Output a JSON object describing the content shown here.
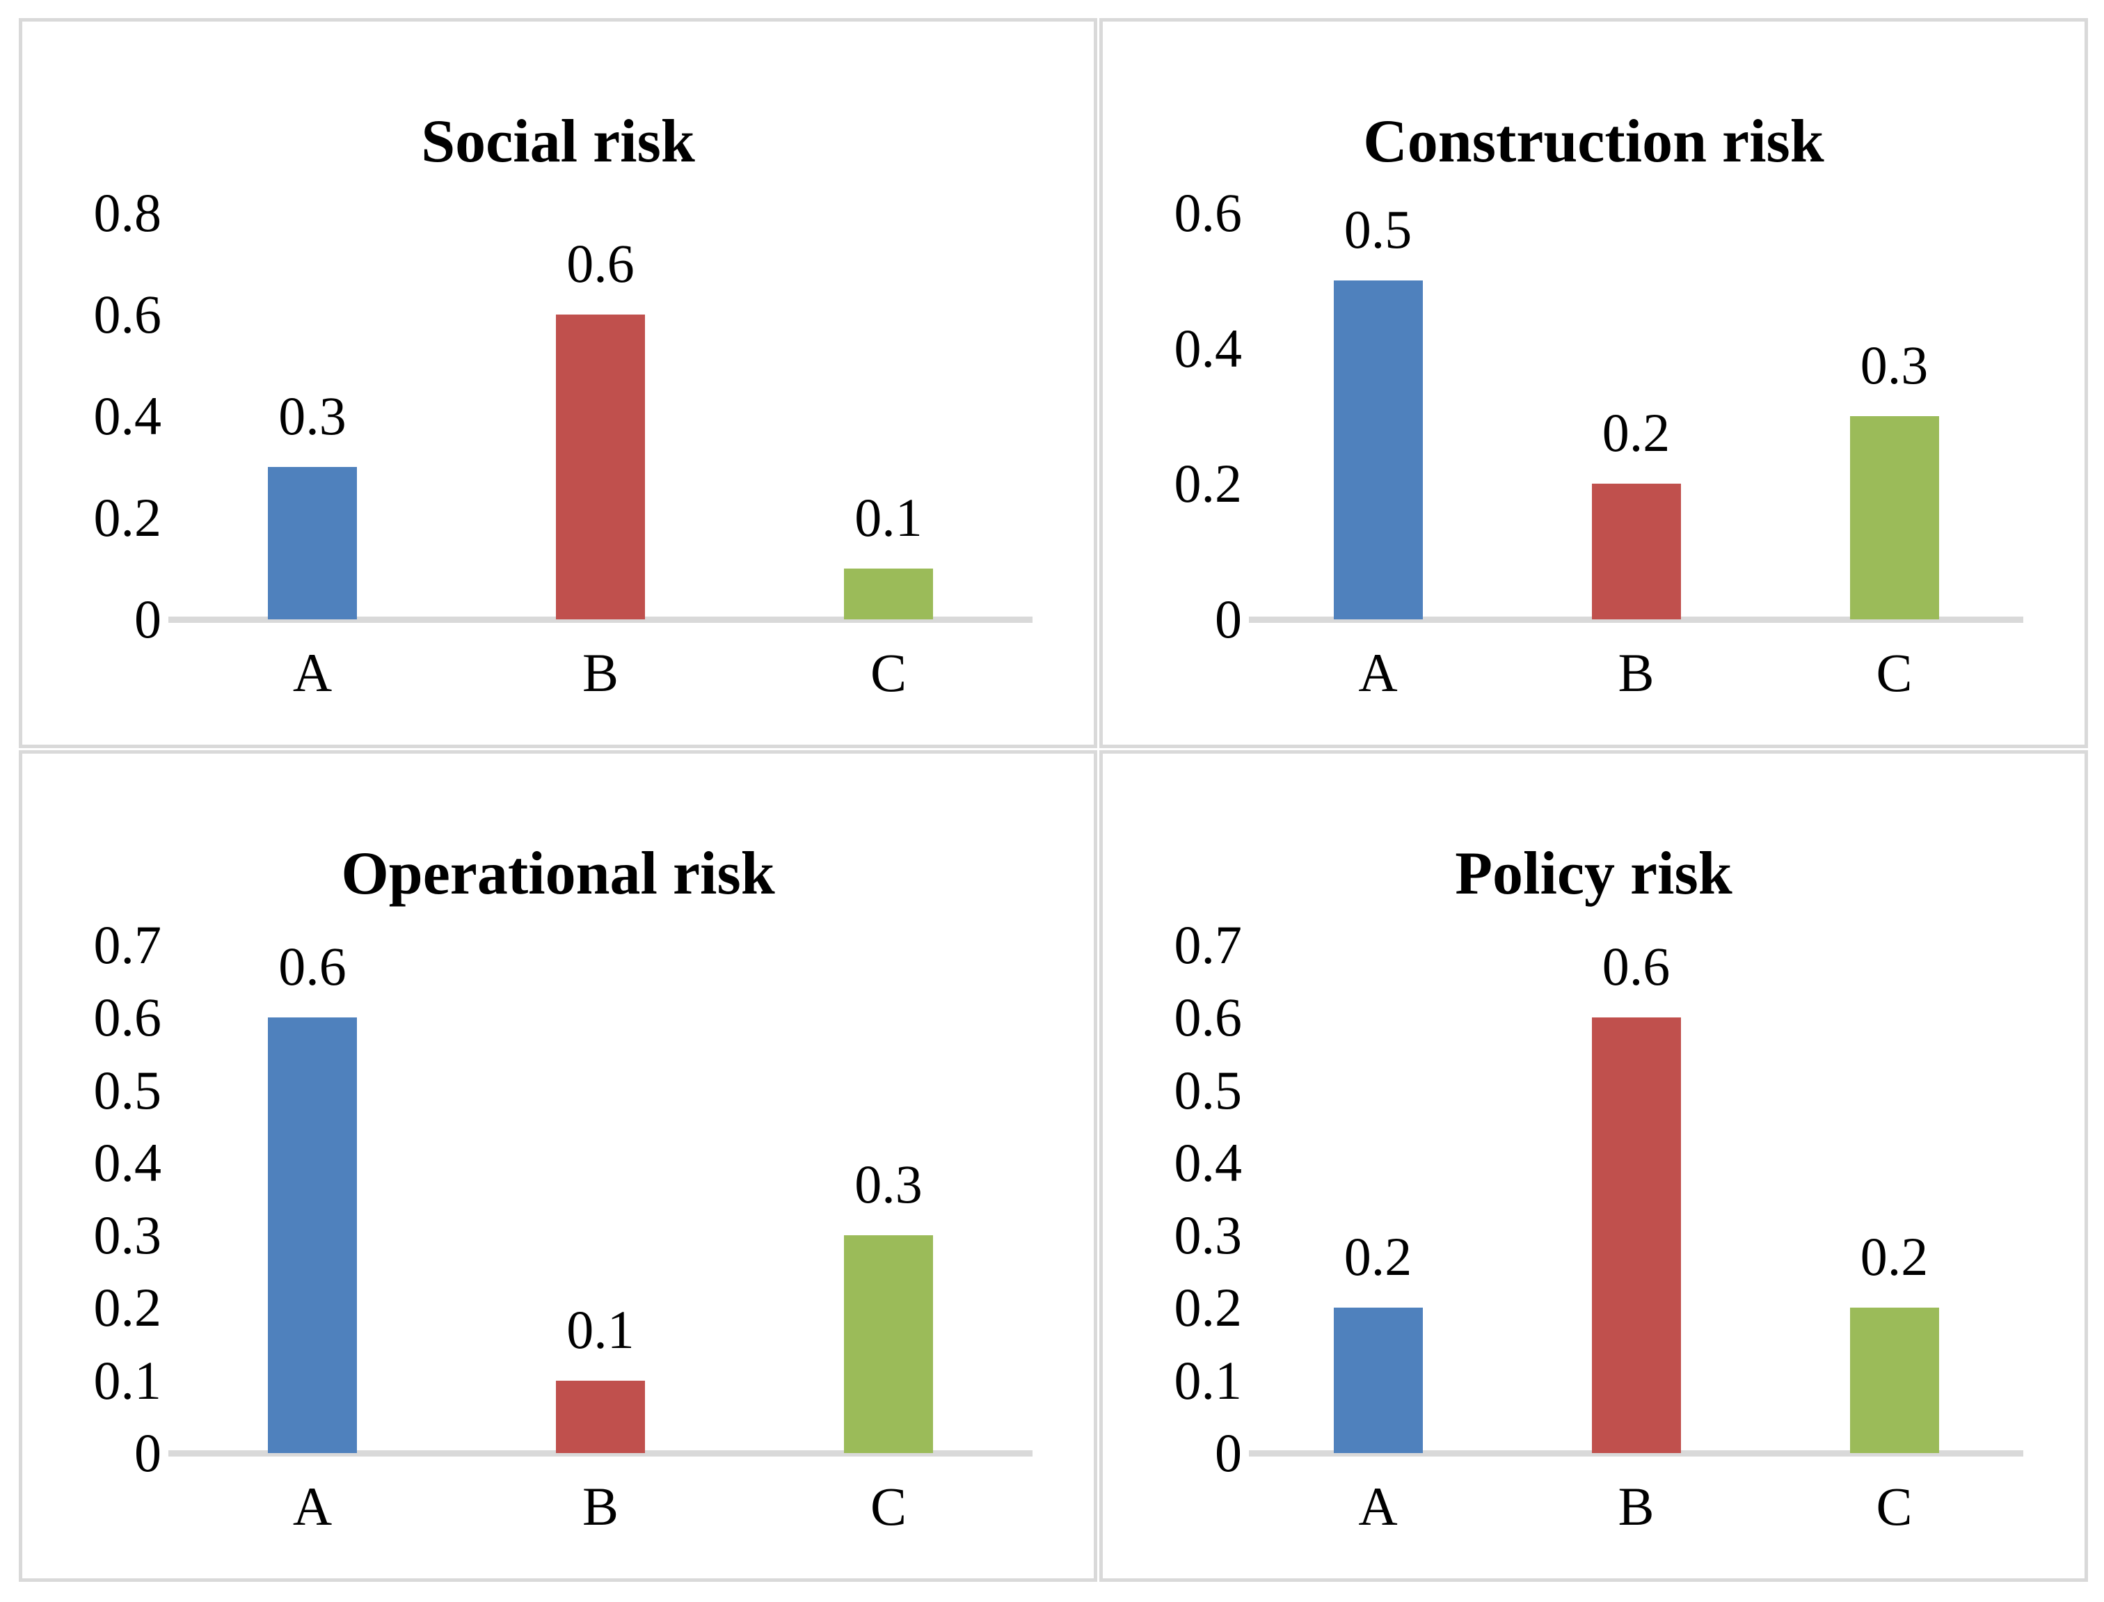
{
  "figure": {
    "background": "#ffffff",
    "panel_border_color": "#d9d9d9",
    "axis_line_color": "#d9d9d9",
    "text_color": "#000000"
  },
  "colors": {
    "bar_a_blue": "#4F81BD",
    "bar_b_red": "#C0504D",
    "bar_c_green": "#9BBB59"
  },
  "chart_data": [
    {
      "type": "bar",
      "title": "Social risk",
      "categories": [
        "A",
        "B",
        "C"
      ],
      "values": [
        0.3,
        0.6,
        0.1
      ],
      "value_labels": [
        "0.3",
        "0.6",
        "0.1"
      ],
      "bar_colors": [
        "#4F81BD",
        "#C0504D",
        "#9BBB59"
      ],
      "yticks": [
        "0.8",
        "0.6",
        "0.4",
        "0.2",
        "0"
      ],
      "ylim": [
        0,
        0.8
      ],
      "xlabel": "",
      "ylabel": "",
      "grid": false,
      "legend": "none"
    },
    {
      "type": "bar",
      "title": "Construction risk",
      "categories": [
        "A",
        "B",
        "C"
      ],
      "values": [
        0.5,
        0.2,
        0.3
      ],
      "value_labels": [
        "0.5",
        "0.2",
        "0.3"
      ],
      "bar_colors": [
        "#4F81BD",
        "#C0504D",
        "#9BBB59"
      ],
      "yticks": [
        "0.6",
        "0.4",
        "0.2",
        "0"
      ],
      "ylim": [
        0,
        0.6
      ],
      "xlabel": "",
      "ylabel": "",
      "grid": false,
      "legend": "none"
    },
    {
      "type": "bar",
      "title": "Operational risk",
      "categories": [
        "A",
        "B",
        "C"
      ],
      "values": [
        0.6,
        0.1,
        0.3
      ],
      "value_labels": [
        "0.6",
        "0.1",
        "0.3"
      ],
      "bar_colors": [
        "#4F81BD",
        "#C0504D",
        "#9BBB59"
      ],
      "yticks": [
        "0.7",
        "0.6",
        "0.5",
        "0.4",
        "0.3",
        "0.2",
        "0.1",
        "0"
      ],
      "ylim": [
        0,
        0.7
      ],
      "xlabel": "",
      "ylabel": "",
      "grid": false,
      "legend": "none"
    },
    {
      "type": "bar",
      "title": "Policy risk",
      "categories": [
        "A",
        "B",
        "C"
      ],
      "values": [
        0.2,
        0.6,
        0.2
      ],
      "value_labels": [
        "0.2",
        "0.6",
        "0.2"
      ],
      "bar_colors": [
        "#4F81BD",
        "#C0504D",
        "#9BBB59"
      ],
      "yticks": [
        "0.7",
        "0.6",
        "0.5",
        "0.4",
        "0.3",
        "0.2",
        "0.1",
        "0"
      ],
      "ylim": [
        0,
        0.7
      ],
      "xlabel": "",
      "ylabel": "",
      "grid": false,
      "legend": "none"
    }
  ]
}
